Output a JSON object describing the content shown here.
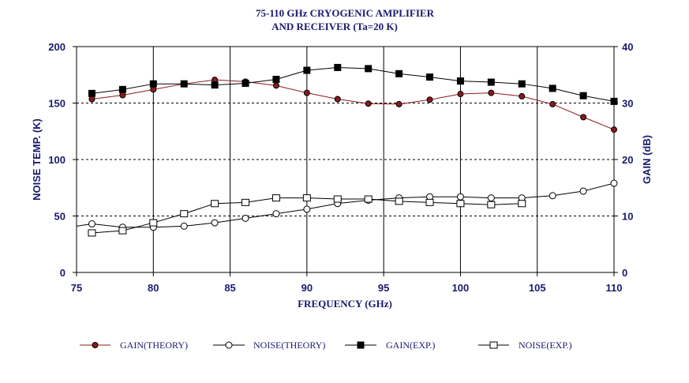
{
  "chart_data": {
    "type": "line",
    "title_line1": "75-110 GHz  CRYOGENIC  AMPLIFIER",
    "title_line2": "AND RECEIVER  (Ta=20 K)",
    "xlabel": "FREQUENCY (GHz)",
    "ylabel_left": "NOISE TEMP. (K)",
    "ylabel_right": "GAIN (dB)",
    "xlim": [
      75,
      110
    ],
    "ylim_left": [
      0,
      200
    ],
    "ylim_right": [
      0,
      40
    ],
    "x_ticks": [
      "75",
      "80",
      "85",
      "90",
      "95",
      "100",
      "105",
      "110"
    ],
    "y_left_ticks": [
      "0",
      "50",
      "100",
      "150",
      "200"
    ],
    "y_right_ticks": [
      "0",
      "10",
      "20",
      "30",
      "40"
    ],
    "grid": true,
    "legend_position": "bottom",
    "series": [
      {
        "name": "GAIN(THEORY)",
        "axis": "right",
        "marker": "filled-circle",
        "color": "#8b1a1a",
        "x": [
          76,
          78,
          80,
          82,
          84,
          86,
          88,
          90,
          92,
          94,
          96,
          98,
          100,
          102,
          104,
          106,
          108,
          110
        ],
        "y": [
          30.7,
          31.4,
          32.4,
          33.4,
          34.1,
          33.8,
          33.1,
          31.8,
          30.7,
          29.9,
          29.8,
          30.6,
          31.6,
          31.8,
          31.2,
          29.8,
          27.5,
          25.3
        ]
      },
      {
        "name": "NOISE(THEORY)",
        "axis": "left",
        "marker": "open-circle",
        "color": "#000000",
        "x": [
          75,
          76,
          78,
          80,
          82,
          84,
          86,
          88,
          90,
          92,
          94,
          96,
          98,
          100,
          102,
          104,
          106,
          108,
          110
        ],
        "y": [
          41,
          43,
          40,
          40,
          41,
          44,
          48,
          52,
          56,
          61,
          64,
          66,
          67,
          67,
          66,
          66,
          68,
          72,
          79
        ]
      },
      {
        "name": "GAIN(EXP.)",
        "axis": "right",
        "marker": "filled-square",
        "color": "#000000",
        "x": [
          76,
          78,
          80,
          82,
          84,
          86,
          88,
          90,
          92,
          94,
          96,
          98,
          100,
          102,
          104,
          106,
          108,
          110
        ],
        "y": [
          31.7,
          32.4,
          33.4,
          33.4,
          33.2,
          33.5,
          34.2,
          35.8,
          36.3,
          36.1,
          35.2,
          34.6,
          33.9,
          33.7,
          33.4,
          32.6,
          31.3,
          30.3
        ]
      },
      {
        "name": "NOISE(EXP.)",
        "axis": "left",
        "marker": "open-square",
        "color": "#000000",
        "x": [
          76,
          78,
          80,
          82,
          84,
          86,
          88,
          90,
          92,
          94,
          96,
          98,
          100,
          102,
          104
        ],
        "y": [
          35,
          37,
          44,
          52,
          61,
          62,
          66,
          66,
          65,
          65,
          63,
          62,
          61,
          60,
          61
        ]
      }
    ]
  }
}
